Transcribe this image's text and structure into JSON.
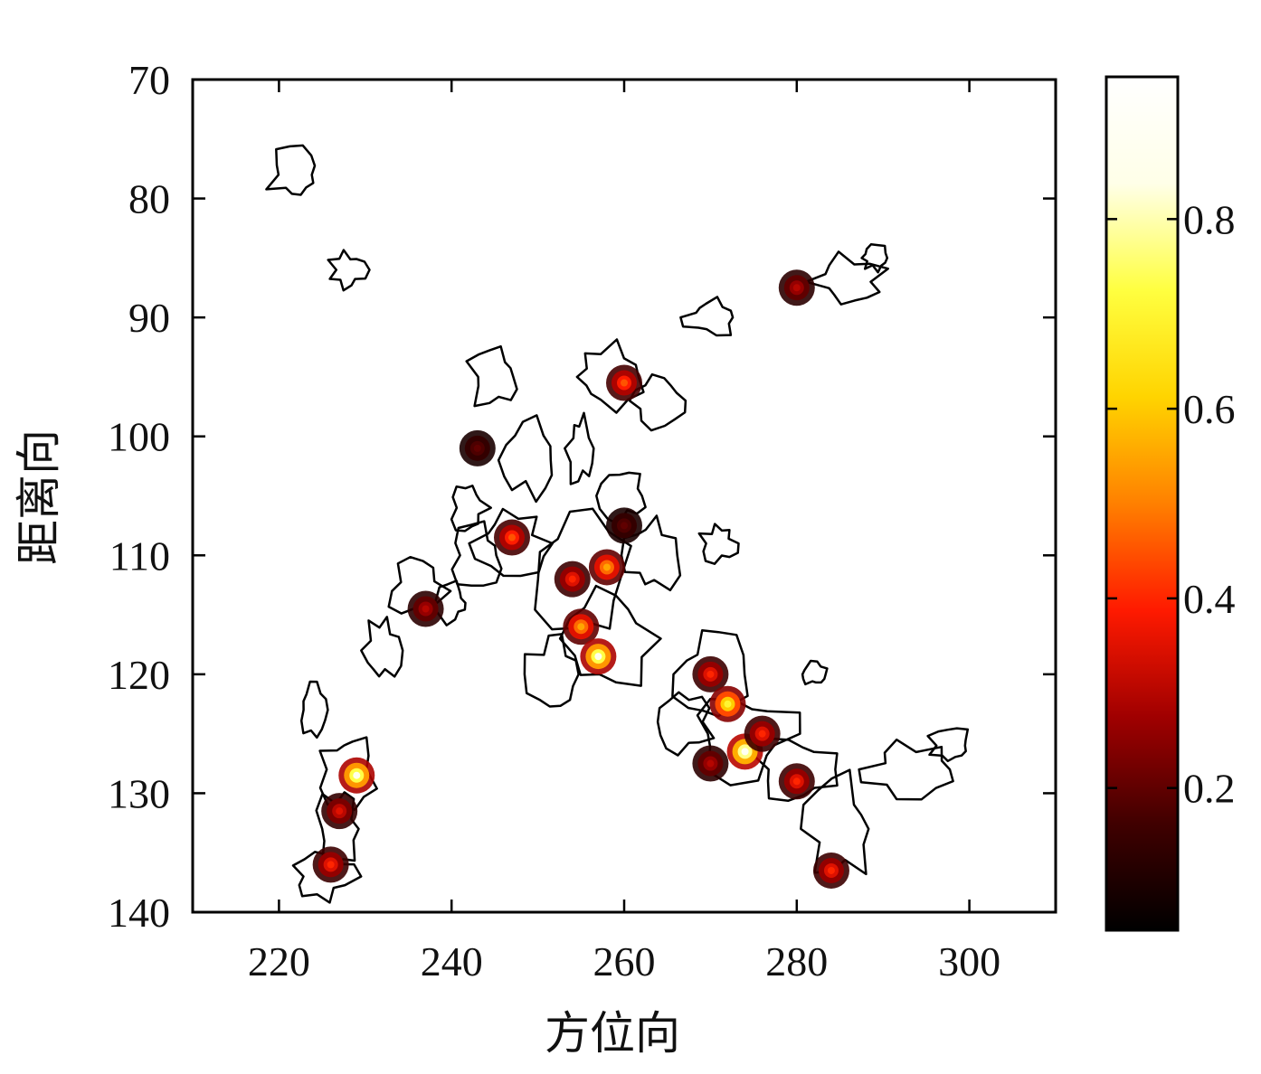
{
  "chart_data": {
    "type": "heatmap",
    "title": "",
    "xlabel": "方位向",
    "ylabel": "距离向",
    "xlim": [
      210,
      310
    ],
    "ylim": [
      70,
      140
    ],
    "y_reversed": true,
    "x_ticks": [
      220,
      240,
      260,
      280,
      300
    ],
    "x_tick_labels": [
      "220",
      "240",
      "260",
      "280",
      "300"
    ],
    "y_ticks": [
      70,
      80,
      90,
      100,
      110,
      120,
      130,
      140
    ],
    "y_tick_labels": [
      "70",
      "80",
      "90",
      "100",
      "110",
      "120",
      "130",
      "140"
    ],
    "grid": false,
    "colormap": "hot",
    "colorbar": {
      "range": [
        0.05,
        0.95
      ],
      "ticks": [
        0.2,
        0.4,
        0.6,
        0.8
      ],
      "tick_labels": [
        "0.2",
        "0.4",
        "0.6",
        "0.8"
      ],
      "stops": [
        "#000000",
        "#400000",
        "#a00000",
        "#ff1a00",
        "#ff8000",
        "#ffd400",
        "#ffff40",
        "#ffffe8",
        "#ffffff"
      ]
    },
    "contour_color": "#000000",
    "hotspots": [
      {
        "x": 229,
        "y": 128.5,
        "value": 0.85
      },
      {
        "x": 227,
        "y": 131.5,
        "value": 0.35
      },
      {
        "x": 226,
        "y": 136,
        "value": 0.4
      },
      {
        "x": 260,
        "y": 95.5,
        "value": 0.45
      },
      {
        "x": 280,
        "y": 87.5,
        "value": 0.3
      },
      {
        "x": 247,
        "y": 108.5,
        "value": 0.45
      },
      {
        "x": 237,
        "y": 114.5,
        "value": 0.3
      },
      {
        "x": 254,
        "y": 112,
        "value": 0.4
      },
      {
        "x": 258,
        "y": 111,
        "value": 0.55
      },
      {
        "x": 255,
        "y": 116,
        "value": 0.55
      },
      {
        "x": 257,
        "y": 118.5,
        "value": 0.85
      },
      {
        "x": 270,
        "y": 120,
        "value": 0.4
      },
      {
        "x": 272,
        "y": 122.5,
        "value": 0.7
      },
      {
        "x": 274,
        "y": 126.5,
        "value": 0.9
      },
      {
        "x": 276,
        "y": 125,
        "value": 0.4
      },
      {
        "x": 280,
        "y": 129,
        "value": 0.4
      },
      {
        "x": 284,
        "y": 136.5,
        "value": 0.4
      },
      {
        "x": 270,
        "y": 127.5,
        "value": 0.3
      },
      {
        "x": 243,
        "y": 101,
        "value": 0.2
      },
      {
        "x": 260,
        "y": 107.5,
        "value": 0.2
      }
    ]
  }
}
